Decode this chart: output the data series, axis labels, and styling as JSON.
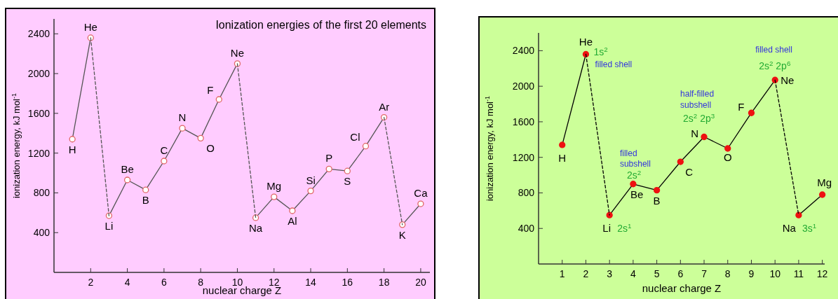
{
  "chart_data": [
    {
      "type": "line",
      "title": "Ionization energies of the first 20 elements",
      "xlabel": "nuclear charge Z",
      "ylabel": "ionization energy, kJ mol$^{-1}$",
      "xlim": [
        0,
        20.5
      ],
      "ylim": [
        0,
        2550
      ],
      "xticks": [
        2,
        4,
        6,
        8,
        10,
        12,
        14,
        16,
        18,
        20
      ],
      "yticks": [
        400,
        800,
        1200,
        1600,
        2000,
        2400
      ],
      "marker": "circle",
      "series": [
        {
          "x": [
            1,
            2
          ],
          "values": [
            1340,
            2360
          ],
          "color": "#555555"
        },
        {
          "x": [
            3,
            4,
            5,
            6,
            7,
            8,
            9,
            10
          ],
          "values": [
            570,
            930,
            830,
            1120,
            1450,
            1350,
            1740,
            2100
          ],
          "color": "#555555"
        },
        {
          "x": [
            11,
            12,
            13,
            14,
            15,
            16,
            17,
            18
          ],
          "values": [
            550,
            760,
            620,
            820,
            1040,
            1020,
            1270,
            1560
          ],
          "color": "#555555"
        },
        {
          "x": [
            19,
            20
          ],
          "values": [
            480,
            690
          ],
          "color": "#555555"
        },
        {
          "x": [
            2,
            3
          ],
          "values": [
            2360,
            570
          ],
          "color": "#555555",
          "line_style": "dashed",
          "marker": "none"
        },
        {
          "x": [
            10,
            11
          ],
          "values": [
            2100,
            550
          ],
          "color": "#555555",
          "line_style": "dashed",
          "marker": "none"
        },
        {
          "x": [
            18,
            19
          ],
          "values": [
            1560,
            480
          ],
          "color": "#555555",
          "line_style": "dashed",
          "marker": "none"
        }
      ],
      "annotations": [
        {
          "text": "H",
          "x": 1,
          "y": 1340
        },
        {
          "text": "He",
          "x": 2,
          "y": 2360
        },
        {
          "text": "Li",
          "x": 3,
          "y": 570
        },
        {
          "text": "Be",
          "x": 4,
          "y": 930
        },
        {
          "text": "B",
          "x": 5,
          "y": 830
        },
        {
          "text": "C",
          "x": 6,
          "y": 1120
        },
        {
          "text": "N",
          "x": 7,
          "y": 1450
        },
        {
          "text": "O",
          "x": 8,
          "y": 1350
        },
        {
          "text": "F",
          "x": 9,
          "y": 1740
        },
        {
          "text": "Ne",
          "x": 10,
          "y": 2100
        },
        {
          "text": "Na",
          "x": 11,
          "y": 550
        },
        {
          "text": "Mg",
          "x": 12,
          "y": 760
        },
        {
          "text": "Al",
          "x": 13,
          "y": 620
        },
        {
          "text": "Si",
          "x": 14,
          "y": 820
        },
        {
          "text": "P",
          "x": 15,
          "y": 1040
        },
        {
          "text": "S",
          "x": 16,
          "y": 1020
        },
        {
          "text": "Cl",
          "x": 17,
          "y": 1270
        },
        {
          "text": "Ar",
          "x": 18,
          "y": 1560
        },
        {
          "text": "K",
          "x": 19,
          "y": 480
        },
        {
          "text": "Ca",
          "x": 20,
          "y": 690
        }
      ]
    },
    {
      "type": "line",
      "xlabel": "nuclear charge Z",
      "ylabel": "ionization energy, kJ mol$^{-1}$",
      "xlim": [
        0,
        12.1
      ],
      "ylim": [
        0,
        2600
      ],
      "xticks": [
        1,
        2,
        3,
        4,
        5,
        6,
        7,
        8,
        9,
        10,
        11,
        12
      ],
      "yticks": [
        400,
        800,
        1200,
        1600,
        2000,
        2400
      ],
      "marker": "circle",
      "series": [
        {
          "x": [
            1,
            2
          ],
          "values": [
            1340,
            2360
          ],
          "color": "#000000"
        },
        {
          "x": [
            3,
            4,
            5,
            6,
            7,
            8,
            9,
            10
          ],
          "values": [
            550,
            900,
            830,
            1150,
            1430,
            1300,
            1700,
            2070
          ],
          "color": "#000000"
        },
        {
          "x": [
            11,
            12
          ],
          "values": [
            550,
            780
          ],
          "color": "#000000"
        },
        {
          "x": [
            2,
            3
          ],
          "values": [
            2360,
            550
          ],
          "color": "#000000",
          "line_style": "dashed",
          "marker": "none"
        },
        {
          "x": [
            10,
            11
          ],
          "values": [
            2070,
            550
          ],
          "color": "#000000",
          "line_style": "dashed",
          "marker": "none"
        }
      ],
      "annotations": [
        {
          "text": "H",
          "x": 1,
          "y": 1340
        },
        {
          "text": "He",
          "x": 2,
          "y": 2360
        },
        {
          "text": "1s$^{2}$",
          "x": 2,
          "y": 2360
        },
        {
          "text": "filled shell",
          "x": 2,
          "y": 2360
        },
        {
          "text": "Li",
          "x": 3,
          "y": 550
        },
        {
          "text": "2s$^{1}$",
          "x": 3,
          "y": 550
        },
        {
          "text": "Be",
          "x": 4,
          "y": 900
        },
        {
          "text": "2s$^{2}$",
          "x": 4,
          "y": 900
        },
        "filled",
        {
          "text": "subshell",
          "x": 4,
          "y": 900
        },
        {
          "text": "B",
          "x": 5,
          "y": 830
        },
        {
          "text": "C",
          "x": 6,
          "y": 1150
        },
        {
          "text": "N",
          "x": 7,
          "y": 1430
        },
        {
          "text": "2s$^{2}$ 2p$^{3}$",
          "x": 7,
          "y": 1430
        },
        "half-filled",
        "subshell",
        {
          "text": "O",
          "x": 8,
          "y": 1300
        },
        {
          "text": "F",
          "x": 9,
          "y": 1700
        },
        {
          "text": "Ne",
          "x": 10,
          "y": 2070
        },
        {
          "text": "2s$^{2}$ 2p$^{6}$",
          "x": 10,
          "y": 2070
        },
        {
          "text": "filled shell",
          "x": 10,
          "y": 2070
        },
        {
          "text": "Na",
          "x": 11,
          "y": 550
        },
        {
          "text": "3s$^{1}$",
          "x": 11,
          "y": 550
        },
        {
          "text": "Mg",
          "x": 12,
          "y": 780
        }
      ]
    }
  ]
}
